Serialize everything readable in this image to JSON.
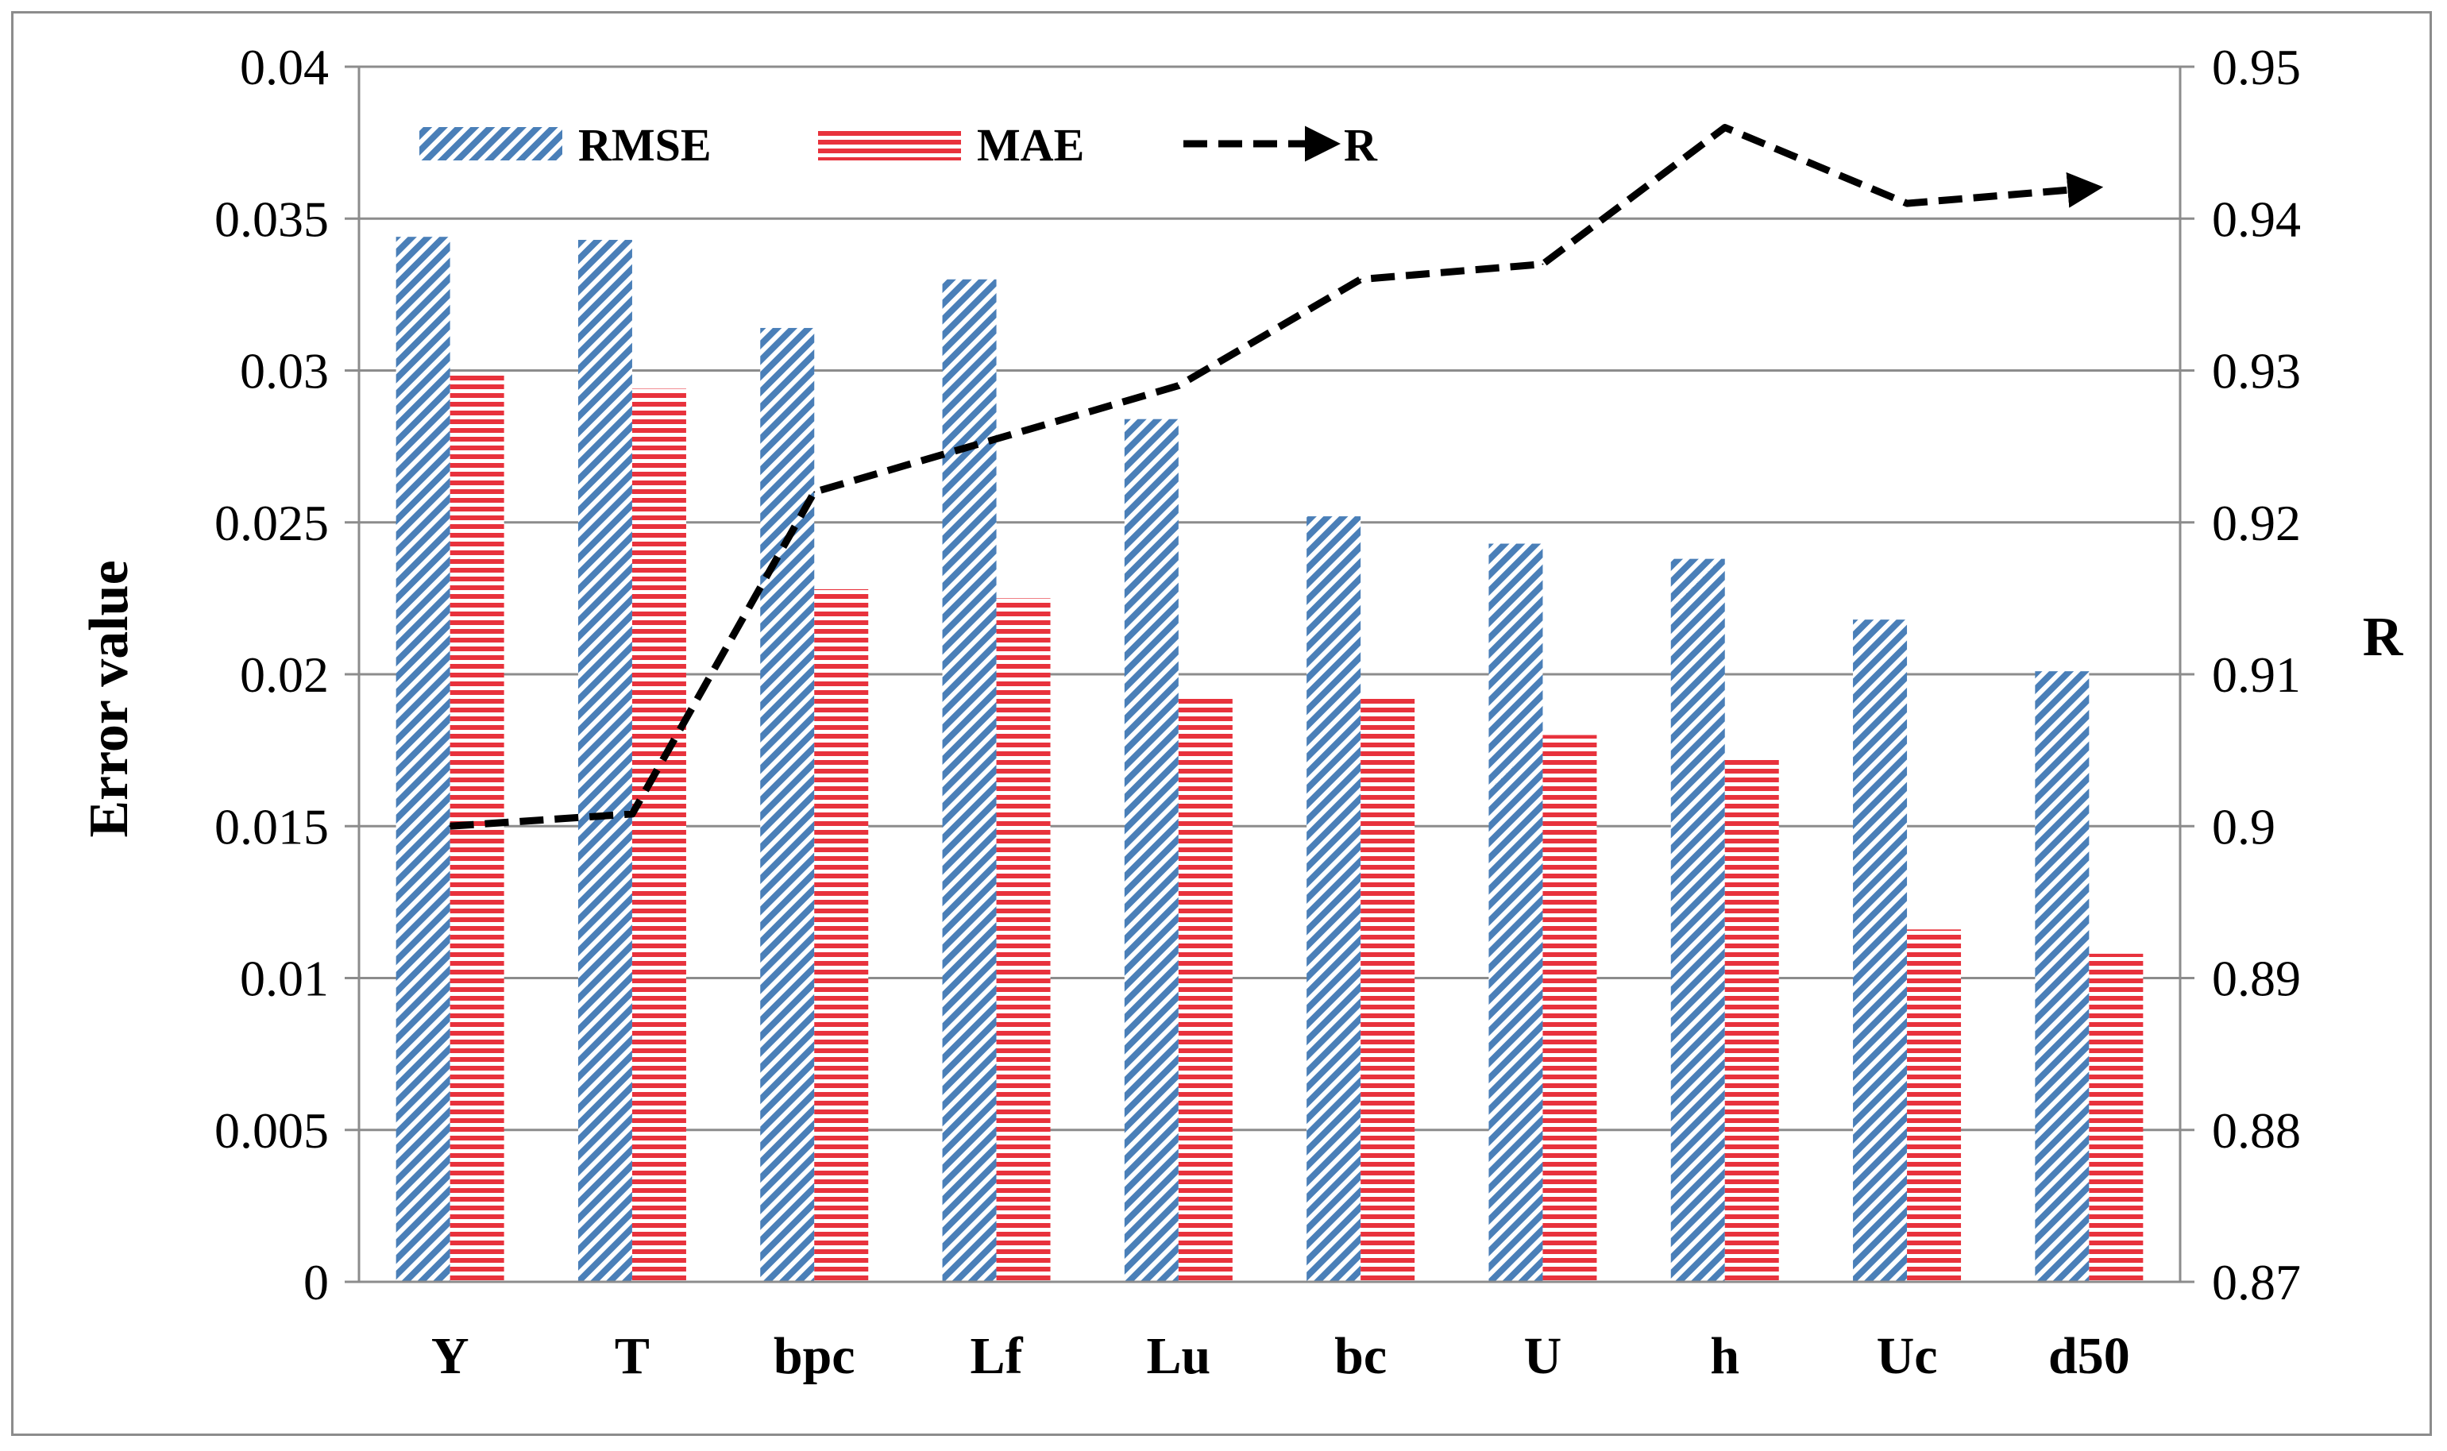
{
  "chart_data": {
    "type": "bar",
    "categories": [
      "Y",
      "T",
      "bpc",
      "Lf",
      "Lu",
      "bc",
      "U",
      "h",
      "Uc",
      "d50"
    ],
    "series": [
      {
        "name": "RMSE",
        "axis": "left",
        "kind": "bar",
        "color": "#4a7fb8",
        "pattern": "diagonal-hatch",
        "values": [
          0.0344,
          0.0343,
          0.0314,
          0.033,
          0.0284,
          0.0252,
          0.0243,
          0.0238,
          0.0218,
          0.0201
        ]
      },
      {
        "name": "MAE",
        "axis": "left",
        "kind": "bar",
        "color": "#e8323c",
        "pattern": "horizontal-lines",
        "values": [
          0.0299,
          0.0294,
          0.0228,
          0.0225,
          0.0193,
          0.0192,
          0.018,
          0.0173,
          0.0116,
          0.0108
        ]
      },
      {
        "name": "R",
        "axis": "right",
        "kind": "line",
        "color": "#000000",
        "style": "dashed-arrow",
        "values": [
          0.9,
          0.9008,
          0.922,
          0.9255,
          0.929,
          0.936,
          0.937,
          0.946,
          0.941,
          0.942
        ]
      }
    ],
    "ylabel": "Error value",
    "y2label": "R",
    "ylim": [
      0,
      0.04
    ],
    "y2lim": [
      0.87,
      0.95
    ],
    "yticks": [
      "0",
      "0.005",
      "0.01",
      "0.015",
      "0.02",
      "0.025",
      "0.03",
      "0.035",
      "0.04"
    ],
    "y2ticks": [
      "0.87",
      "0.88",
      "0.89",
      "0.9",
      "0.91",
      "0.92",
      "0.93",
      "0.94",
      "0.95"
    ],
    "grid": true,
    "legend_position": "top-left"
  }
}
